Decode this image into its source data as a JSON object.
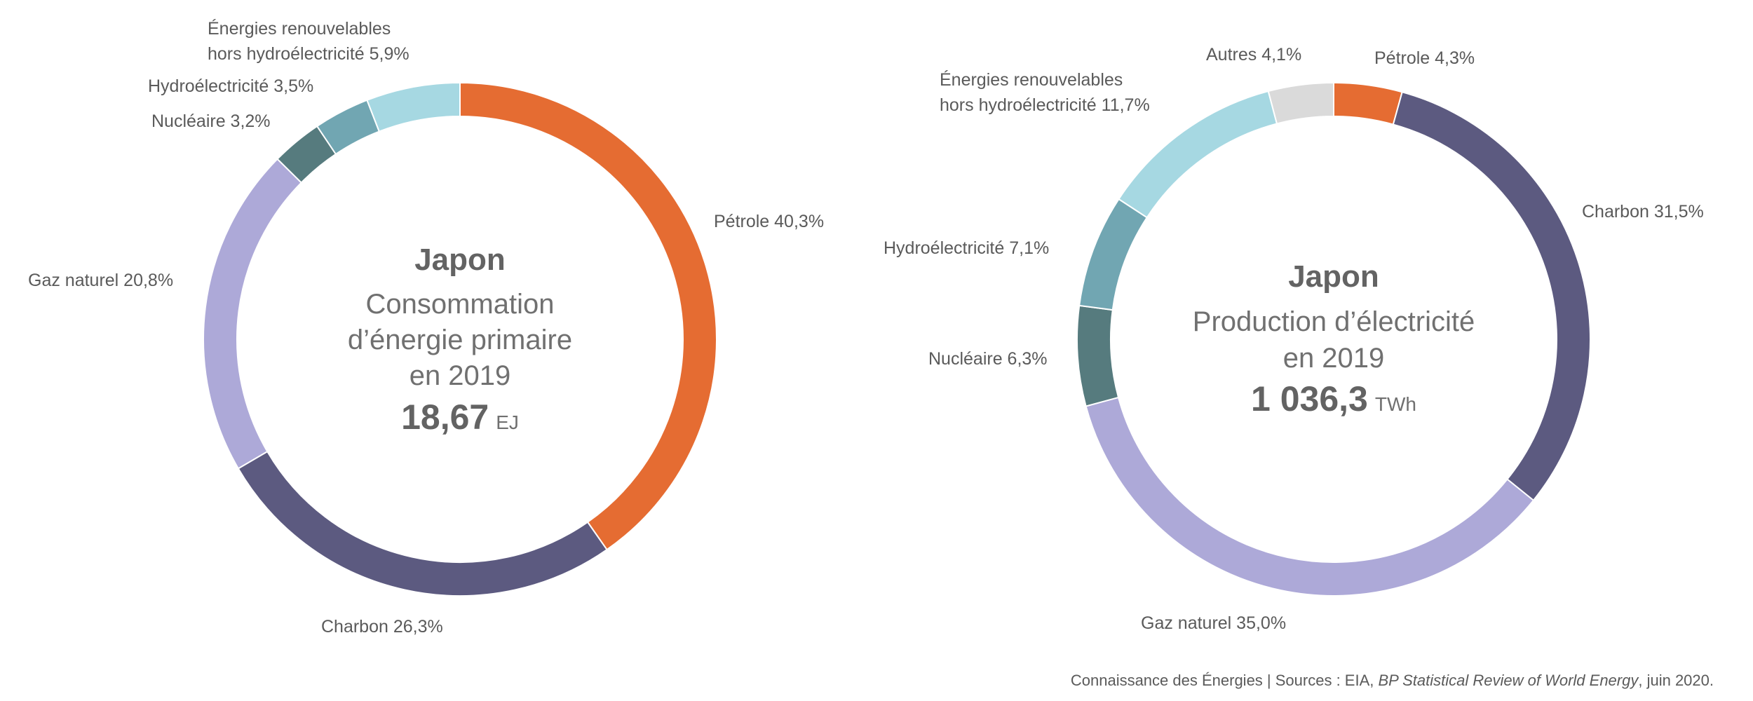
{
  "chart_data": [
    {
      "type": "pie",
      "variant": "donut",
      "title": "Japon",
      "subtitle": [
        "Consommation",
        "d’énergie primaire",
        "en 2019"
      ],
      "total": "18,67",
      "unit": "EJ",
      "start": "top, clockwise",
      "slices": [
        {
          "name": "Pétrole",
          "value": 40.3,
          "label": "Pétrole 40,3%",
          "color": "#E56C32"
        },
        {
          "name": "Charbon",
          "value": 26.3,
          "label": "Charbon 26,3%",
          "color": "#5C5A80"
        },
        {
          "name": "Gaz naturel",
          "value": 20.8,
          "label": "Gaz naturel 20,8%",
          "color": "#ADA9D8"
        },
        {
          "name": "Nucléaire",
          "value": 3.2,
          "label": "Nucléaire 3,2%",
          "color": "#567B7E"
        },
        {
          "name": "Hydroélectricité",
          "value": 3.5,
          "label": "Hydroélectricité 3,5%",
          "color": "#71A6B2"
        },
        {
          "name": "Énergies renouvelables hors hydroélectricité",
          "value": 5.9,
          "label": [
            "Énergies renouvelables",
            "hors hydroélectricité 5,9%"
          ],
          "color": "#A6D8E2"
        }
      ]
    },
    {
      "type": "pie",
      "variant": "donut",
      "title": "Japon",
      "subtitle": [
        "Production d’électricité",
        "en 2019"
      ],
      "total": "1 036,3",
      "unit": "TWh",
      "start": "top, clockwise",
      "slices": [
        {
          "name": "Pétrole",
          "value": 4.3,
          "label": "Pétrole 4,3%",
          "color": "#E56C32"
        },
        {
          "name": "Charbon",
          "value": 31.5,
          "label": "Charbon 31,5%",
          "color": "#5C5A80"
        },
        {
          "name": "Gaz naturel",
          "value": 35.0,
          "label": "Gaz naturel 35,0%",
          "color": "#ADA9D8"
        },
        {
          "name": "Nucléaire",
          "value": 6.3,
          "label": "Nucléaire 6,3%",
          "color": "#567B7E"
        },
        {
          "name": "Hydroélectricité",
          "value": 7.1,
          "label": "Hydroélectricité 7,1%",
          "color": "#71A6B2"
        },
        {
          "name": "Énergies renouvelables hors hydroélectricité",
          "value": 11.7,
          "label": [
            "Énergies renouvelables",
            "hors hydroélectricité 11,7%"
          ],
          "color": "#A6D8E2"
        },
        {
          "name": "Autres",
          "value": 4.1,
          "label": "Autres 4,1%",
          "color": "#DADADA"
        }
      ]
    }
  ],
  "footer": {
    "prefix": "Connaissance des Énergies | Sources : EIA, ",
    "italic": "BP Statistical Review of World Energy",
    "suffix": ", juin 2020."
  }
}
